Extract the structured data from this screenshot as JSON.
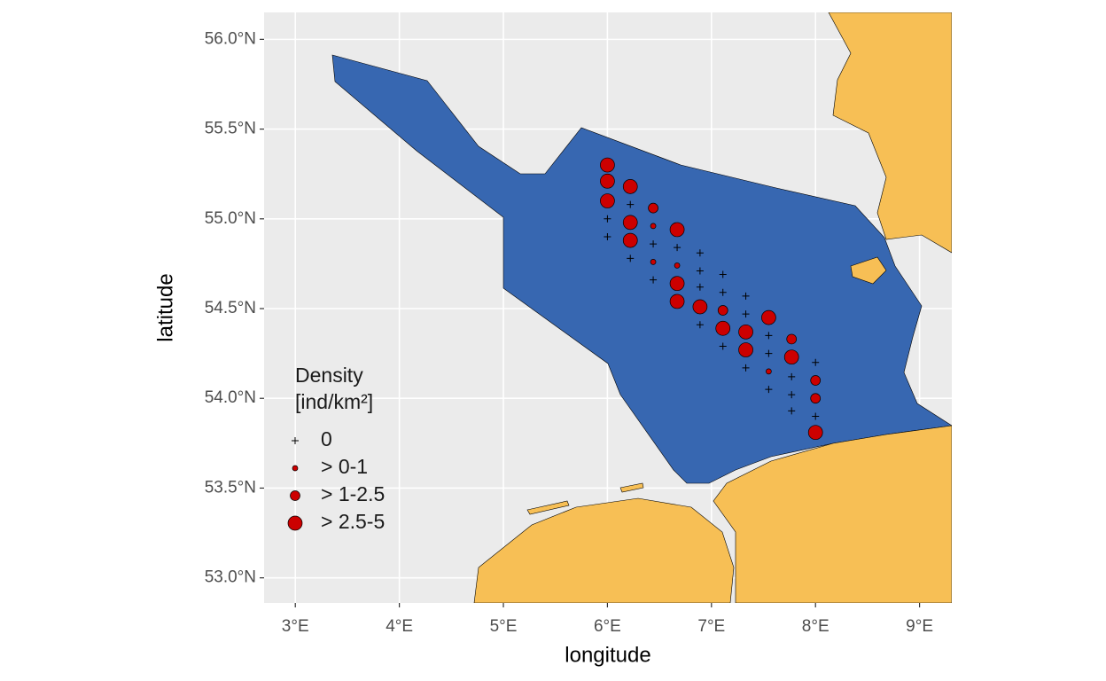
{
  "chart_data": {
    "type": "scatter",
    "x_label": "longitude",
    "y_label": "latitude",
    "legend_title": [
      "Density",
      "[ind/km²]"
    ],
    "xlim": [
      2.7,
      9.31
    ],
    "ylim": [
      52.86,
      56.15
    ],
    "xticks": [
      {
        "value": 3,
        "label": "3°E"
      },
      {
        "value": 4,
        "label": "4°E"
      },
      {
        "value": 5,
        "label": "5°E"
      },
      {
        "value": 6,
        "label": "6°E"
      },
      {
        "value": 7,
        "label": "7°E"
      },
      {
        "value": 8,
        "label": "8°E"
      },
      {
        "value": 9,
        "label": "9°E"
      }
    ],
    "yticks": [
      {
        "value": 53,
        "label": "53.0°N"
      },
      {
        "value": 53.5,
        "label": "53.5°N"
      },
      {
        "value": 54,
        "label": "54.0°N"
      },
      {
        "value": 54.5,
        "label": "54.5°N"
      },
      {
        "value": 55,
        "label": "55.0°N"
      },
      {
        "value": 55.5,
        "label": "55.5°N"
      },
      {
        "value": 56,
        "label": "56.0°N"
      }
    ],
    "grid": true,
    "series": [
      {
        "name": "0",
        "marker": "plus",
        "size": 4,
        "color": "#000000",
        "x": [
          6.0,
          6.0,
          6.22,
          6.22,
          6.44,
          6.44,
          6.67,
          6.89,
          6.89,
          6.89,
          6.89,
          7.11,
          7.11,
          7.11,
          7.33,
          7.33,
          7.33,
          7.55,
          7.55,
          7.55,
          7.77,
          7.77,
          7.77,
          8.0,
          8.0
        ],
        "values": [
          55.0,
          54.9,
          55.08,
          54.78,
          54.86,
          54.66,
          54.84,
          54.81,
          54.71,
          54.62,
          54.41,
          54.69,
          54.59,
          54.29,
          54.57,
          54.47,
          54.17,
          54.35,
          54.25,
          54.05,
          54.12,
          54.02,
          53.93,
          54.2,
          53.9
        ]
      },
      {
        "name": "> 0-1",
        "marker": "circle",
        "size": 3,
        "color": "#cc0000",
        "x": [
          6.44,
          6.44,
          6.67,
          7.55
        ],
        "values": [
          54.96,
          54.76,
          54.74,
          54.15
        ]
      },
      {
        "name": "> 1-2.5",
        "marker": "circle",
        "size": 5.5,
        "color": "#cc0000",
        "x": [
          6.44,
          7.11,
          7.77,
          8.0,
          8.0
        ],
        "values": [
          55.06,
          54.49,
          54.33,
          54.1,
          54.0
        ]
      },
      {
        "name": "> 2.5-5",
        "marker": "circle",
        "size": 8,
        "color": "#cc0000",
        "x": [
          6.0,
          6.0,
          6.0,
          6.22,
          6.22,
          6.22,
          6.67,
          6.67,
          6.67,
          6.89,
          7.11,
          7.33,
          7.33,
          7.55,
          7.77,
          8.0
        ],
        "values": [
          55.3,
          55.21,
          55.1,
          55.18,
          54.98,
          54.88,
          54.94,
          54.64,
          54.54,
          54.51,
          54.39,
          54.37,
          54.27,
          54.45,
          54.23,
          53.81
        ]
      }
    ]
  }
}
